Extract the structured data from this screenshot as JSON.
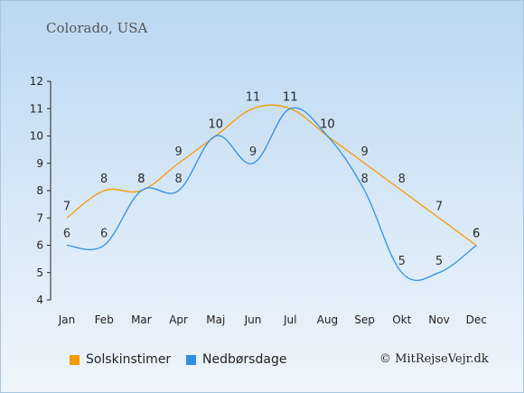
{
  "location": "Colorado, USA",
  "credit": "© MitRejseVejr.dk",
  "chart_data": {
    "type": "line",
    "categories": [
      "Jan",
      "Feb",
      "Mar",
      "Apr",
      "Maj",
      "Jun",
      "Jul",
      "Aug",
      "Sep",
      "Okt",
      "Nov",
      "Dec"
    ],
    "ylim": [
      4,
      12
    ],
    "yticks": [
      4,
      5,
      6,
      7,
      8,
      9,
      10,
      11,
      12
    ],
    "grid": false,
    "legend_position": "bottom",
    "series": [
      {
        "name": "Solskinstimer",
        "color": "#f59a00",
        "values": [
          7,
          8,
          8,
          9,
          10,
          11,
          11,
          10,
          9,
          8,
          7,
          6
        ]
      },
      {
        "name": "Nedbørsdage",
        "color": "#2f8fe0",
        "values": [
          6,
          6,
          8,
          8,
          10,
          9,
          11,
          10,
          8,
          5,
          5,
          6
        ]
      }
    ]
  }
}
